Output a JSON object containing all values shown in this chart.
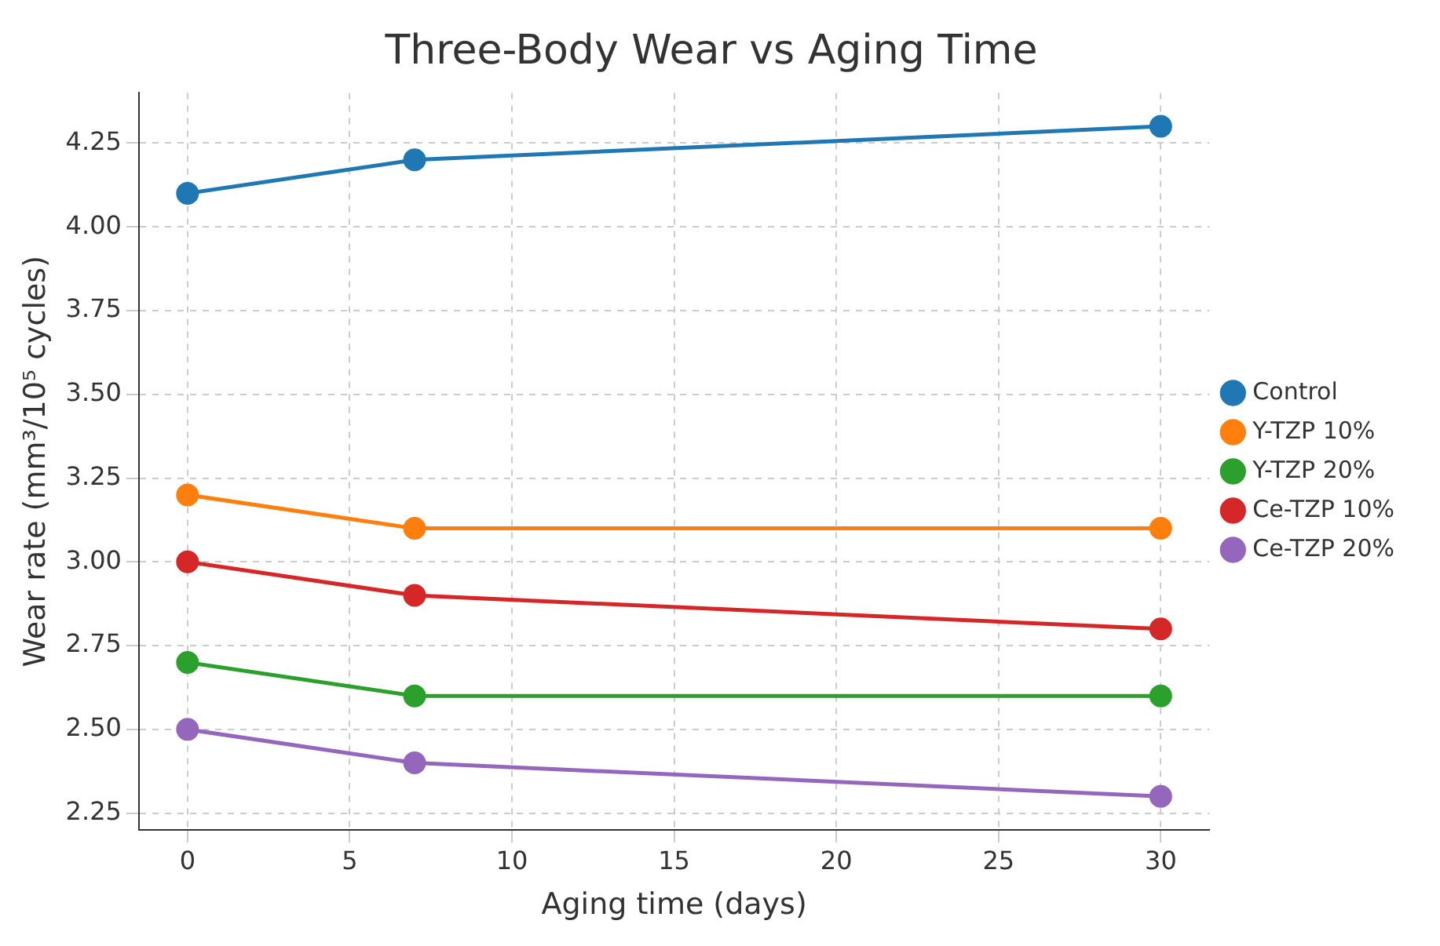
{
  "chart_data": {
    "type": "line",
    "title": "Three-Body Wear vs Aging Time",
    "xlabel": "Aging time (days)",
    "ylabel": "Wear rate (mm³/10⁵ cycles)",
    "x": [
      0,
      7,
      30
    ],
    "series": [
      {
        "name": "Control",
        "color": "#1f77b4",
        "values": [
          4.1,
          4.2,
          4.3
        ]
      },
      {
        "name": "Y-TZP 10%",
        "color": "#ff7f0e",
        "values": [
          3.2,
          3.1,
          3.1
        ]
      },
      {
        "name": "Y-TZP 20%",
        "color": "#2ca02c",
        "values": [
          2.7,
          2.6,
          2.6
        ]
      },
      {
        "name": "Ce-TZP 10%",
        "color": "#d62728",
        "values": [
          3.0,
          2.9,
          2.8
        ]
      },
      {
        "name": "Ce-TZP 20%",
        "color": "#9467bd",
        "values": [
          2.5,
          2.4,
          2.3
        ]
      }
    ],
    "xlim": [
      -1.5,
      31.5
    ],
    "xticks": [
      0,
      5,
      10,
      15,
      20,
      25,
      30
    ],
    "ylim": [
      2.2,
      4.4
    ],
    "yticks": [
      {
        "value": 2.25,
        "label": "2.25"
      },
      {
        "value": 2.5,
        "label": "2.50"
      },
      {
        "value": 2.75,
        "label": "2.75"
      },
      {
        "value": 3.0,
        "label": "3.00"
      },
      {
        "value": 3.25,
        "label": "3.25"
      },
      {
        "value": 3.5,
        "label": "3.50"
      },
      {
        "value": 3.75,
        "label": "3.75"
      },
      {
        "value": 4.0,
        "label": "4.00"
      },
      {
        "value": 4.25,
        "label": "4.25"
      }
    ],
    "grid": true,
    "legend": "right",
    "marker": "circle",
    "line_style": "solid"
  }
}
